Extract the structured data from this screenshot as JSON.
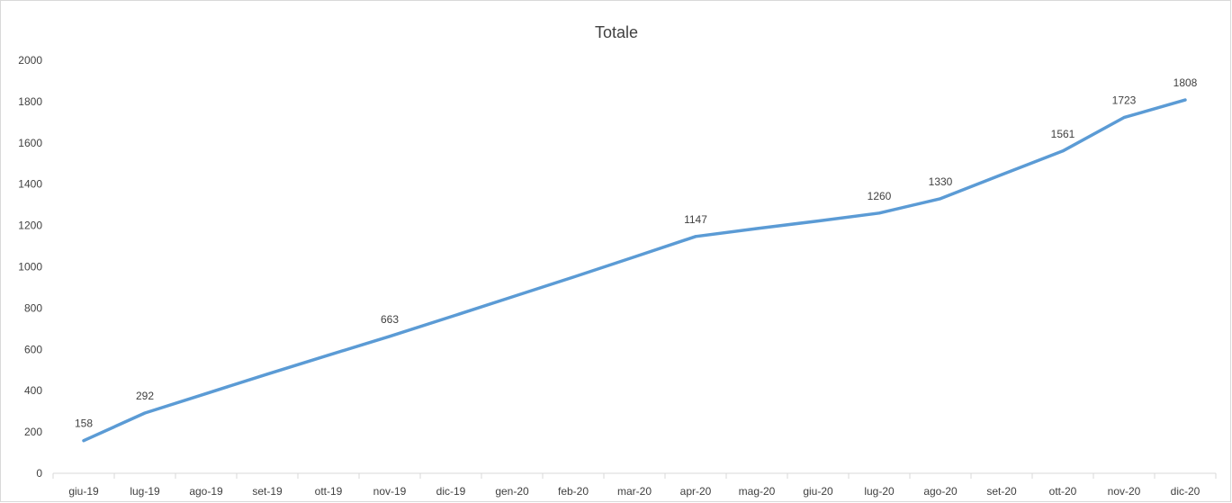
{
  "chart_data": {
    "type": "line",
    "title": "Totale",
    "xlabel": "",
    "ylabel": "",
    "categories": [
      "giu-19",
      "lug-19",
      "ago-19",
      "set-19",
      "ott-19",
      "nov-19",
      "dic-19",
      "gen-20",
      "feb-20",
      "mar-20",
      "apr-20",
      "mag-20",
      "giu-20",
      "lug-20",
      "ago-20",
      "set-20",
      "ott-20",
      "nov-20",
      "dic-20"
    ],
    "series": [
      {
        "values": [
          158,
          292,
          386,
          480,
          572,
          663,
          758,
          854,
          950,
          1048,
          1147,
          1185,
          1222,
          1260,
          1330,
          1446,
          1561,
          1723,
          1808
        ],
        "color": "#5b9bd5"
      }
    ],
    "data_labels": [
      {
        "category": "giu-19",
        "value": "158"
      },
      {
        "category": "lug-19",
        "value": "292"
      },
      {
        "category": "nov-19",
        "value": "663"
      },
      {
        "category": "apr-20",
        "value": "1147"
      },
      {
        "category": "lug-20",
        "value": "1260"
      },
      {
        "category": "ago-20",
        "value": "1330"
      },
      {
        "category": "ott-20",
        "value": "1561"
      },
      {
        "category": "nov-20",
        "value": "1723"
      },
      {
        "category": "dic-20",
        "value": "1808"
      }
    ],
    "ylim": [
      0,
      2000
    ],
    "yticks": [
      "0",
      "200",
      "400",
      "600",
      "800",
      "1000",
      "1200",
      "1400",
      "1600",
      "1800",
      "2000"
    ],
    "grid": false,
    "legend": "none",
    "axis_color": "#d9d9d9",
    "text_color": "#404040"
  }
}
